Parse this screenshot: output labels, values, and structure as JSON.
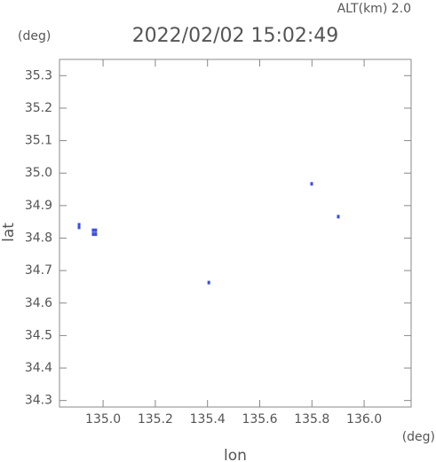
{
  "chart_data": {
    "type": "scatter",
    "title": "2022/02/02 15:02:49",
    "subtitle": "ALT(km) 2.0",
    "y_unit": "(deg)",
    "x_unit": "(deg)",
    "xlabel": "lon",
    "ylabel": "lat",
    "color": "#3b4fe0",
    "x": [
      134.908,
      134.908,
      134.962,
      134.972,
      134.962,
      134.972,
      135.405,
      135.799,
      135.901
    ],
    "y": [
      34.841,
      34.833,
      34.824,
      34.824,
      34.812,
      34.812,
      34.663,
      34.967,
      34.866
    ],
    "xlim": [
      134.833,
      136.18
    ],
    "ylim": [
      34.28,
      35.35
    ],
    "xticks": [
      {
        "value": 135,
        "label": "135.0"
      },
      135.2,
      135.4,
      135.6,
      135.8,
      {
        "value": 136,
        "label": "136.0"
      }
    ],
    "yticks": [
      35.3,
      35.2,
      35.1,
      {
        "value": 35,
        "label": "35.0"
      },
      34.9,
      34.8,
      34.7,
      34.6,
      34.5,
      34.4,
      34.3
    ]
  }
}
